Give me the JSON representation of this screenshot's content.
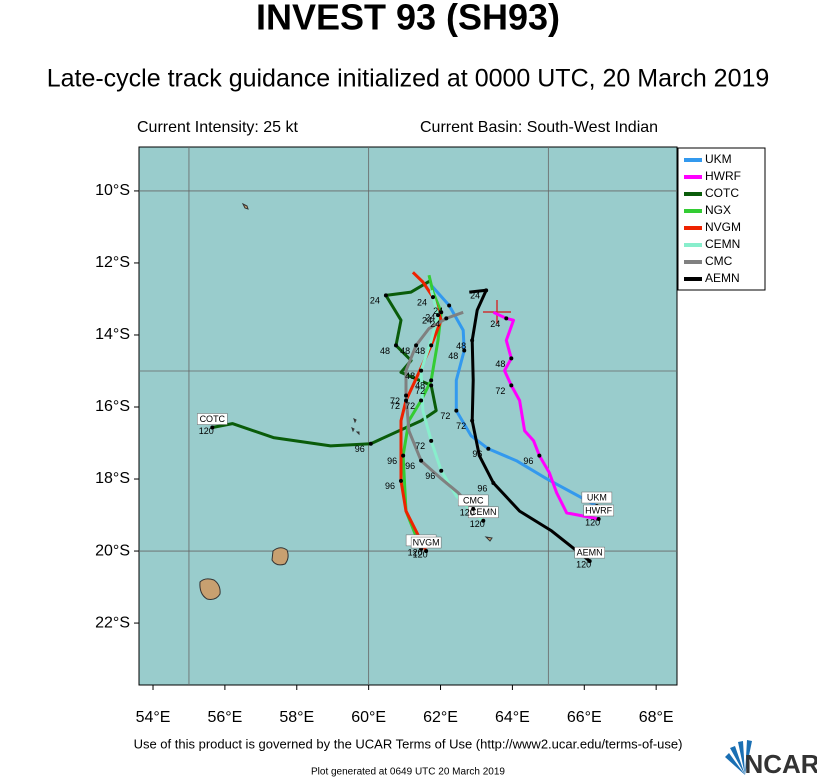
{
  "chart_data": {
    "type": "line",
    "title": "INVEST 93 (SH93)",
    "subtitle": "Late-cycle track guidance initialized at 0000 UTC, 20 March 2019",
    "intensity": "Current Intensity: 25 kt",
    "basin": "Current Basin: South-West Indian",
    "footer": "Use of this product is governed by the UCAR Terms of Use (http://www2.ucar.edu/terms-of-use)",
    "generated": "Plot generated at 0649 UTC  20 March 2019",
    "logo": "NCAR",
    "background": "#99cccc",
    "xlim": [
      53.61,
      68.58
    ],
    "ylim": [
      -23.72,
      -8.78
    ],
    "xticks": [
      {
        "value": 54,
        "label": "54°E"
      },
      {
        "value": 56,
        "label": "56°E"
      },
      {
        "value": 58,
        "label": "58°E"
      },
      {
        "value": 60,
        "label": "60°E"
      },
      {
        "value": 62,
        "label": "62°E"
      },
      {
        "value": 64,
        "label": "64°E"
      },
      {
        "value": 66,
        "label": "66°E"
      },
      {
        "value": 68,
        "label": "68°E"
      }
    ],
    "yticks": [
      {
        "value": -10,
        "label": "10°S"
      },
      {
        "value": -12,
        "label": "12°S"
      },
      {
        "value": -14,
        "label": "14°S"
      },
      {
        "value": -16,
        "label": "16°S"
      },
      {
        "value": -18,
        "label": "18°S"
      },
      {
        "value": -20,
        "label": "20°S"
      },
      {
        "value": -22,
        "label": "22°S"
      }
    ],
    "xgrid": [
      55,
      60,
      65
    ],
    "ygrid": [
      -10,
      -15,
      -20
    ],
    "series": [
      {
        "name": "UKM",
        "color": "#3399ee",
        "x": [
          61.74,
          62.24,
          62.63,
          62.66,
          62.44,
          62.44,
          62.85,
          63.33,
          64.11,
          64.95,
          66.35
        ],
        "values": [
          -12.62,
          -13.18,
          -13.87,
          -14.43,
          -15.26,
          -16.1,
          -16.8,
          -17.16,
          -17.49,
          -17.99,
          -18.75
        ],
        "point_labels": [
          null,
          "24",
          null,
          "48",
          null,
          "72",
          null,
          "96",
          null,
          null,
          "120"
        ]
      },
      {
        "name": "HWRF",
        "color": "#ff00ff",
        "x": [
          63.47,
          63.83,
          64.03,
          63.83,
          63.97,
          63.78,
          63.97,
          64.2,
          64.34,
          64.59,
          64.75,
          65.03,
          65.23,
          65.51,
          66.4
        ],
        "values": [
          -13.37,
          -13.54,
          -13.59,
          -14.15,
          -14.65,
          -14.99,
          -15.4,
          -15.82,
          -16.66,
          -16.94,
          -17.35,
          -17.83,
          -18.38,
          -18.94,
          -19.11
        ],
        "point_labels": [
          null,
          "24",
          null,
          null,
          "48",
          null,
          "72",
          null,
          null,
          null,
          "96",
          null,
          null,
          null,
          "120"
        ]
      },
      {
        "name": "COTC",
        "color": "#0a5c0a",
        "x": [
          61.74,
          61.18,
          60.48,
          60.9,
          60.76,
          61.18,
          60.9,
          61.74,
          61.88,
          61.46,
          60.06,
          58.94,
          57.35,
          56.21,
          55.65
        ],
        "values": [
          -12.48,
          -12.81,
          -12.9,
          -13.59,
          -14.29,
          -14.71,
          -15.04,
          -15.4,
          -16.1,
          -16.38,
          -17.02,
          -17.08,
          -16.85,
          -16.46,
          -16.57
        ],
        "point_labels": [
          null,
          null,
          "24",
          null,
          "48",
          null,
          null,
          "72",
          null,
          null,
          "96",
          null,
          null,
          null,
          "120"
        ]
      },
      {
        "name": "NGX",
        "color": "#33cc33",
        "x": [
          61.68,
          61.79,
          62.02,
          61.93,
          61.74,
          61.46,
          61.12,
          60.96,
          61.04,
          61.46
        ],
        "values": [
          -12.34,
          -12.81,
          -13.37,
          -14.15,
          -15.26,
          -15.82,
          -16.38,
          -17.35,
          -18.89,
          -19.94
        ],
        "point_labels": [
          null,
          null,
          "24",
          null,
          "48",
          "72",
          null,
          "96",
          null,
          "120"
        ]
      },
      {
        "name": "NVGM",
        "color": "#ee2200",
        "x": [
          61.23,
          61.51,
          61.79,
          62.02,
          61.74,
          61.4,
          61.04,
          60.9,
          60.9,
          61.04,
          61.6
        ],
        "values": [
          -12.26,
          -12.53,
          -12.95,
          -13.59,
          -14.29,
          -15.04,
          -15.82,
          -16.38,
          -18.05,
          -18.89,
          -20.0
        ],
        "point_labels": [
          null,
          null,
          "24",
          null,
          "48",
          null,
          "72",
          null,
          "96",
          null,
          "120"
        ]
      },
      {
        "name": "CEMN",
        "color": "#88eecc",
        "x": [
          61.74,
          61.93,
          61.74,
          61.46,
          61.51,
          61.74,
          62.02,
          62.44,
          62.8,
          63.19
        ],
        "values": [
          -12.76,
          -13.45,
          -14.15,
          -14.99,
          -16.1,
          -16.94,
          -17.77,
          -18.47,
          -18.83,
          -19.16
        ],
        "point_labels": [
          null,
          "24",
          null,
          "48",
          null,
          "72",
          "96",
          null,
          null,
          "120"
        ]
      },
      {
        "name": "CMC",
        "color": "#808080",
        "x": [
          62.63,
          62.16,
          61.68,
          61.32,
          61.04,
          61.04,
          61.12,
          61.46,
          62.02,
          62.49,
          62.91
        ],
        "values": [
          -13.37,
          -13.54,
          -13.82,
          -14.29,
          -14.99,
          -15.68,
          -16.66,
          -17.49,
          -17.99,
          -18.38,
          -18.83
        ],
        "point_labels": [
          null,
          "24",
          null,
          "48",
          null,
          "72",
          null,
          "96",
          null,
          null,
          "120"
        ]
      },
      {
        "name": "AEMN",
        "color": "#000000",
        "x": [
          62.8,
          63.27,
          63.02,
          62.88,
          62.91,
          62.88,
          63.08,
          63.47,
          64.2,
          65.09,
          66.15
        ],
        "values": [
          -12.81,
          -12.76,
          -13.31,
          -14.15,
          -15.26,
          -16.38,
          -17.35,
          -18.11,
          -18.89,
          -19.44,
          -20.28
        ],
        "point_labels": [
          null,
          "24",
          null,
          "48",
          null,
          "72",
          null,
          "96",
          null,
          null,
          "120"
        ]
      }
    ]
  }
}
